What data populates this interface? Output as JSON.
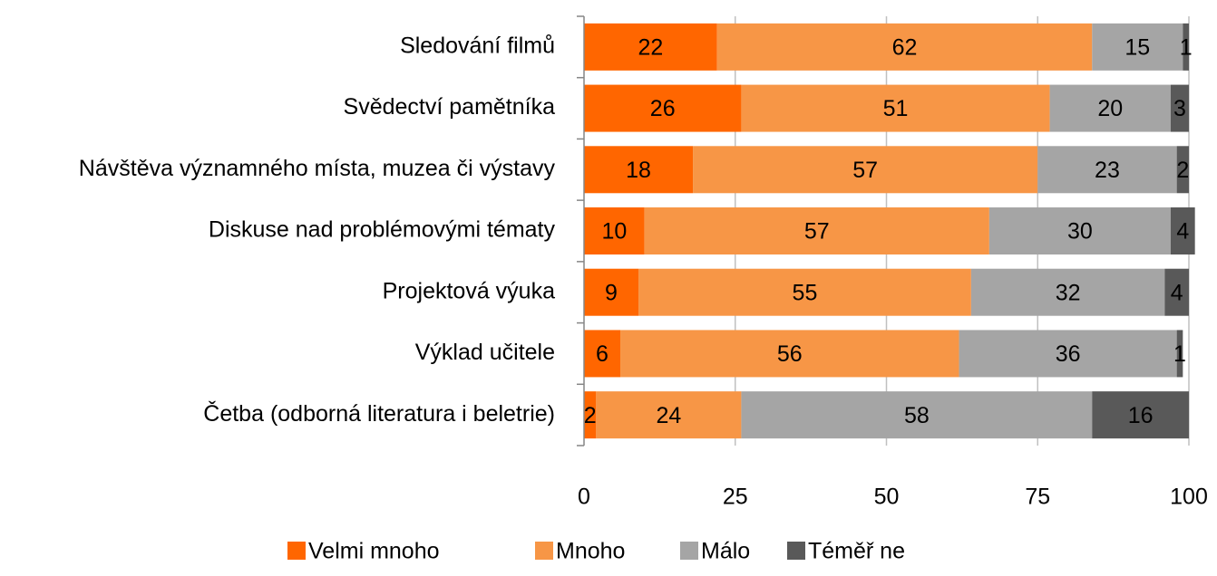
{
  "chart_data": {
    "type": "stacked-barh",
    "categories": [
      "Sledování filmů",
      "Svědectví pamětníka",
      "Návštěva významného místa, muzea či výstavy",
      "Diskuse nad problémovými tématy",
      "Projektová výuka",
      "Výklad učitele",
      "Četba (odborná literatura i beletrie)"
    ],
    "series": [
      {
        "name": "Velmi mnoho",
        "color": "#ff6600",
        "values": [
          22,
          26,
          18,
          10,
          9,
          6,
          2
        ]
      },
      {
        "name": "Mnoho",
        "color": "#f79646",
        "values": [
          62,
          51,
          57,
          57,
          55,
          56,
          24
        ]
      },
      {
        "name": "Málo",
        "color": "#a5a5a5",
        "values": [
          15,
          20,
          23,
          30,
          32,
          36,
          58
        ]
      },
      {
        "name": "Téměř ne",
        "color": "#595959",
        "values": [
          1,
          3,
          2,
          4,
          4,
          1,
          16
        ]
      }
    ],
    "xlim": [
      0,
      100
    ],
    "xticks": [
      0,
      25,
      50,
      75,
      100
    ],
    "grid": true,
    "legend": "bottom"
  }
}
